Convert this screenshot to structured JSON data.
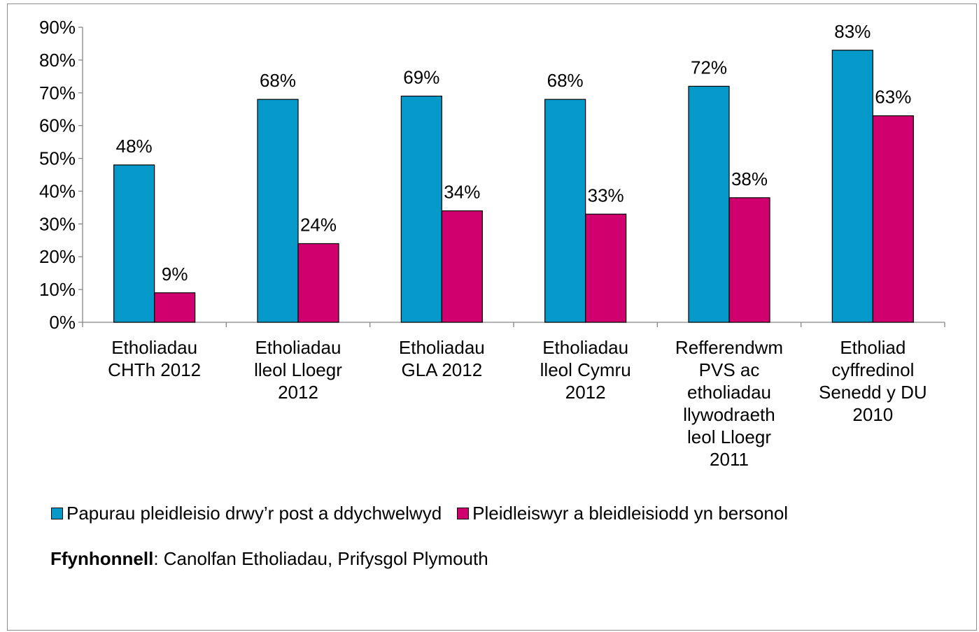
{
  "chart_data": {
    "type": "bar",
    "categories": [
      [
        "Etholiadau",
        "CHTh 2012"
      ],
      [
        "Etholiadau",
        "lleol Lloegr",
        "2012"
      ],
      [
        "Etholiadau",
        "GLA 2012"
      ],
      [
        "Etholiadau",
        "lleol Cymru",
        "2012"
      ],
      [
        "Refferendwm",
        "PVS ac",
        "etholiadau",
        "llywodraeth",
        "leol Lloegr",
        "2011"
      ],
      [
        "Etholiad",
        "cyffredinol",
        "Senedd y DU",
        "2010"
      ]
    ],
    "series": [
      {
        "name": "Papurau pleidleisio drwy’r post a ddychwelwyd",
        "color": "#0599c9",
        "values": [
          48,
          68,
          69,
          68,
          72,
          83
        ],
        "labels": [
          "48%",
          "68%",
          "69%",
          "68%",
          "72%",
          "83%"
        ]
      },
      {
        "name": "Pleidleiswyr a bleidleisiodd yn bersonol",
        "color": "#d0006f",
        "values": [
          9,
          24,
          34,
          33,
          38,
          63
        ],
        "labels": [
          "9%",
          "24%",
          "34%",
          "33%",
          "38%",
          "63%"
        ]
      }
    ],
    "ylim": [
      0,
      90
    ],
    "yticks": [
      0,
      10,
      20,
      30,
      40,
      50,
      60,
      70,
      80,
      90
    ],
    "ytick_labels": [
      "0%",
      "10%",
      "20%",
      "30%",
      "40%",
      "50%",
      "60%",
      "70%",
      "80%",
      "90%"
    ],
    "grid": false,
    "legend_position": "bottom"
  },
  "source": {
    "label": "Ffynhonnell",
    "text": ": Canolfan Etholiadau, Prifysgol Plymouth"
  }
}
